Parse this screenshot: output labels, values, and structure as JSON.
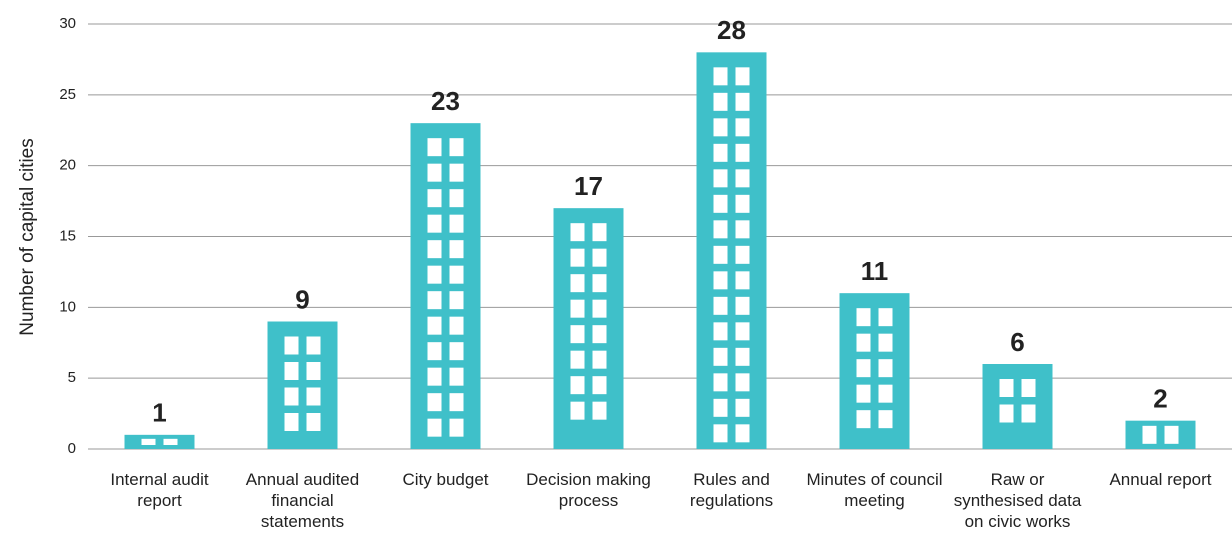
{
  "chart_data": {
    "type": "bar",
    "y_label": "Number of capital cities",
    "categories": [
      "Internal audit report",
      "Annual audited financial statements",
      "City budget",
      "Decision making process",
      "Rules and regulations",
      "Minutes of council meeting",
      "Raw or synthesised data on civic works",
      "Annual report"
    ],
    "values": [
      1,
      9,
      23,
      17,
      28,
      11,
      6,
      2
    ],
    "color": "#3fc0c9",
    "ylim": [
      0,
      30
    ],
    "yticks": [
      0,
      5,
      10,
      15,
      20,
      25,
      30
    ],
    "grid": true
  }
}
